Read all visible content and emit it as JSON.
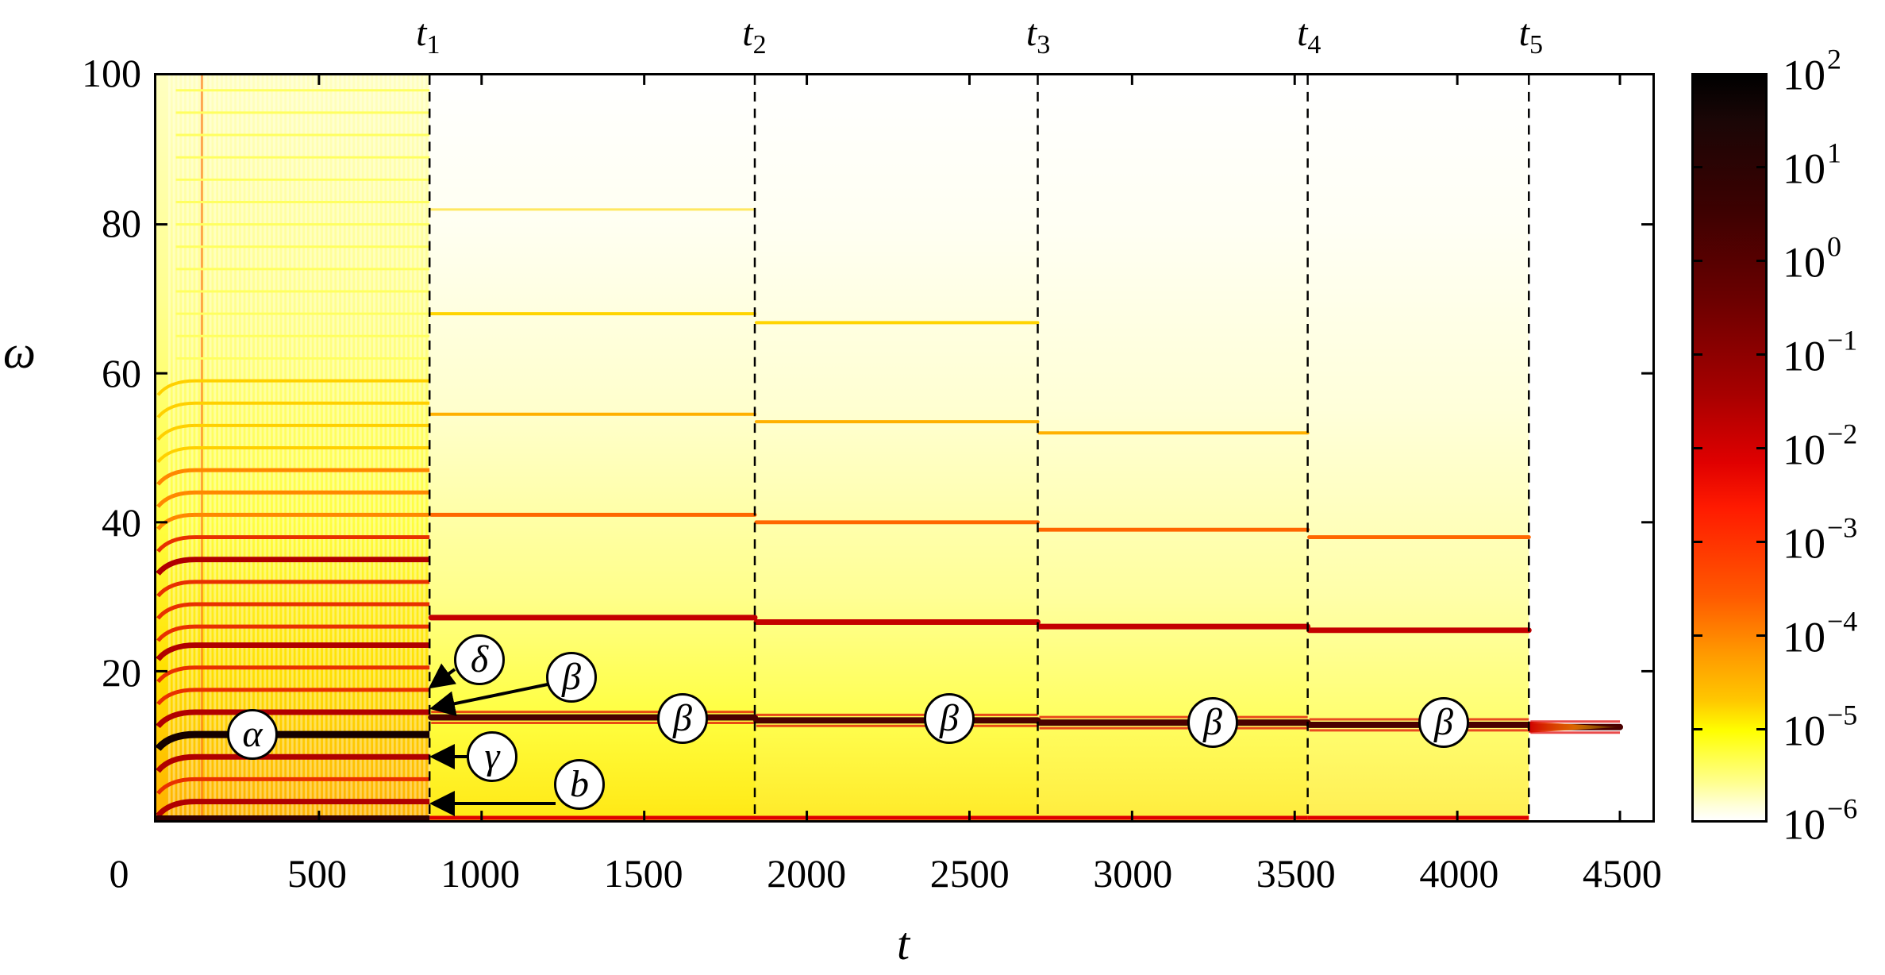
{
  "chart_data": {
    "type": "heatmap",
    "title": "",
    "xlabel": "t",
    "ylabel": "ω",
    "xlim": [
      0,
      4600
    ],
    "ylim": [
      0,
      100
    ],
    "xticks": [
      0,
      500,
      1000,
      1500,
      2000,
      2500,
      3000,
      3500,
      4000,
      4500
    ],
    "yticks": [
      20,
      40,
      60,
      80,
      100
    ],
    "ytick_labels_shown": [
      "20",
      "40",
      "60",
      "80",
      "100"
    ],
    "grid": false,
    "colorbar": {
      "scale": "log",
      "range": [
        1e-06,
        100
      ],
      "tick_labels": [
        "10^2",
        "10^1",
        "10^0",
        "10^-1",
        "10^-2",
        "10^-3",
        "10^-4",
        "10^-5",
        "10^-6"
      ],
      "colormap": "hot (white→yellow→orange→red→dark red→black)"
    },
    "transition_times": {
      "note": "positions of dashed vertical lines, estimated from pixels",
      "labels": [
        "t1",
        "t2",
        "t3",
        "t4",
        "t5"
      ],
      "values": [
        840,
        1840,
        2710,
        3540,
        4220
      ]
    },
    "segments": [
      {
        "t_range": [
          0,
          840
        ],
        "bands_omega_est": [
          2.5,
          5.5,
          8.5,
          11.5,
          14.5,
          17.5,
          20.5,
          23.5,
          26,
          29,
          32,
          35,
          38,
          41,
          44,
          47,
          50,
          53,
          56,
          59
        ],
        "dominant_omega_est": 11.5,
        "background": "dense yellow/orange"
      },
      {
        "t_range": [
          840,
          1840
        ],
        "bands_omega_est": [
          13.8,
          27.2,
          41,
          54.5,
          68,
          82
        ],
        "dominant_omega_est": 13.8
      },
      {
        "t_range": [
          1840,
          2710
        ],
        "bands_omega_est": [
          13.4,
          26.6,
          40,
          53.5,
          66.8
        ],
        "dominant_omega_est": 13.4
      },
      {
        "t_range": [
          2710,
          3540
        ],
        "bands_omega_est": [
          13.1,
          26.0,
          39,
          52
        ],
        "dominant_omega_est": 13.1
      },
      {
        "t_range": [
          3540,
          4220
        ],
        "bands_omega_est": [
          12.8,
          25.5,
          38
        ],
        "dominant_omega_est": 12.8
      },
      {
        "t_range": [
          4220,
          4500
        ],
        "bands_omega_est": [
          12.5
        ],
        "dominant_omega_est": 12.5,
        "note": "decaying tail"
      }
    ],
    "annotations": [
      {
        "label": "α",
        "t": 300,
        "omega": 11.5
      },
      {
        "label": "δ",
        "t": 1030,
        "omega": 18,
        "arrow_to": {
          "t": 850,
          "omega": 16.5
        }
      },
      {
        "label": "β",
        "t": 1280,
        "omega": 15.5,
        "arrow_to": {
          "t": 850,
          "omega": 14.5
        }
      },
      {
        "label": "γ",
        "t": 1040,
        "omega": 8.8,
        "arrow_to": {
          "t": 850,
          "omega": 8.8
        }
      },
      {
        "label": "b",
        "t": 1280,
        "omega": 4.5,
        "arrow_to": {
          "t": 850,
          "omega": 2.5
        }
      },
      {
        "label": "β",
        "t": 1620,
        "omega": 14.4
      },
      {
        "label": "β",
        "t": 2420,
        "omega": 14.3
      },
      {
        "label": "β",
        "t": 3230,
        "omega": 13.8
      },
      {
        "label": "β",
        "t": 3940,
        "omega": 13.8
      }
    ]
  },
  "axes": {
    "x_title": "t",
    "y_title": "ω",
    "x_ticks": [
      "0",
      "500",
      "1000",
      "1500",
      "2000",
      "2500",
      "3000",
      "3500",
      "4000",
      "4500"
    ],
    "y_ticks": [
      "20",
      "40",
      "60",
      "80",
      "100"
    ]
  },
  "tmarks": [
    {
      "base": "t",
      "sub": "1"
    },
    {
      "base": "t",
      "sub": "2"
    },
    {
      "base": "t",
      "sub": "3"
    },
    {
      "base": "t",
      "sub": "4"
    },
    {
      "base": "t",
      "sub": "5"
    }
  ],
  "colorbar": {
    "labels": [
      {
        "base": "10",
        "exp": "2"
      },
      {
        "base": "10",
        "exp": "1"
      },
      {
        "base": "10",
        "exp": "0"
      },
      {
        "base": "10",
        "exp": "−1"
      },
      {
        "base": "10",
        "exp": "−2"
      },
      {
        "base": "10",
        "exp": "−3"
      },
      {
        "base": "10",
        "exp": "−4"
      },
      {
        "base": "10",
        "exp": "−5"
      },
      {
        "base": "10",
        "exp": "−6"
      }
    ]
  },
  "annotations": {
    "alpha": "α",
    "delta": "δ",
    "beta1": "β",
    "gamma": "γ",
    "b": "b",
    "beta2": "β",
    "beta3": "β",
    "beta4": "β",
    "beta5": "β"
  },
  "colors": {
    "band_dark": "#5a0000",
    "band_red": "#c80000",
    "band_orange": "#ff8c00",
    "band_yellow": "#ffd800",
    "bg_yellow": "#ffff4a",
    "bg_pale": "#ffffb0"
  }
}
